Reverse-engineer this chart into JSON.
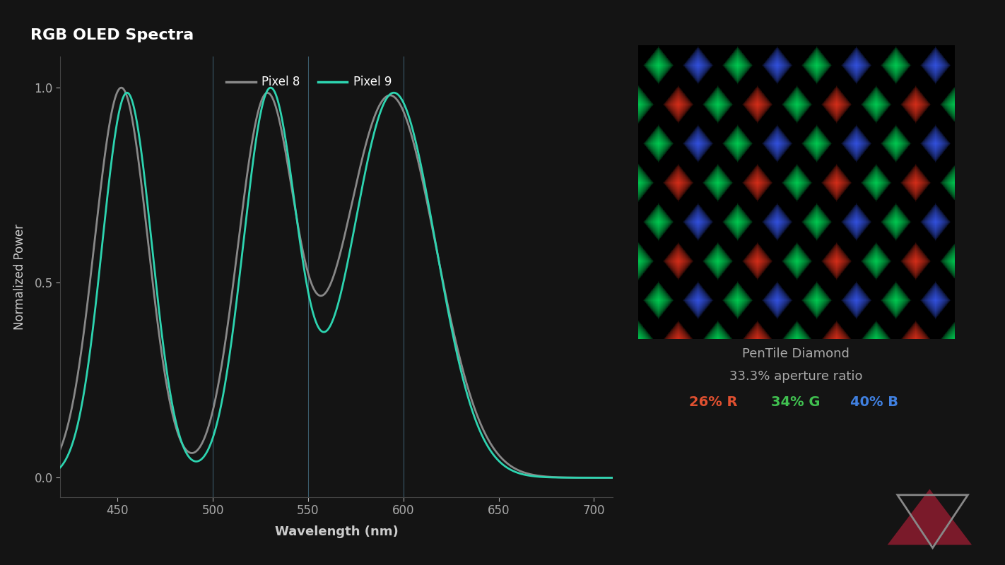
{
  "title": "RGB OLED Spectra",
  "xlabel": "Wavelength (nm)",
  "ylabel": "Normalized Power",
  "background_color": "#141414",
  "pixel9_color": "#2dd4b0",
  "pixel8_color": "#888888",
  "legend_labels": [
    "Pixel 9",
    "Pixel 8"
  ],
  "xlim": [
    420,
    710
  ],
  "ylim": [
    -0.05,
    1.08
  ],
  "xticks": [
    450,
    500,
    550,
    600,
    650,
    700
  ],
  "yticks": [
    0,
    0.5,
    1
  ],
  "title_color": "#ffffff",
  "axis_label_color": "#cccccc",
  "tick_color": "#aaaaaa",
  "pentile_text": "PenTile Diamond",
  "aperture_text": "33.3% aperture ratio",
  "r_text": "26% R",
  "g_text": "34% G",
  "b_text": "40% B",
  "r_color": "#e05030",
  "g_color": "#40c050",
  "b_color": "#4080e0",
  "info_text_color": "#aaaaaa",
  "vline_color": "#3a5a6a",
  "vline_positions": [
    500,
    550,
    600
  ],
  "spine_color": "#444444",
  "logo_tri_up_color": "#7a1a2a",
  "logo_tri_down_color": "#888888"
}
